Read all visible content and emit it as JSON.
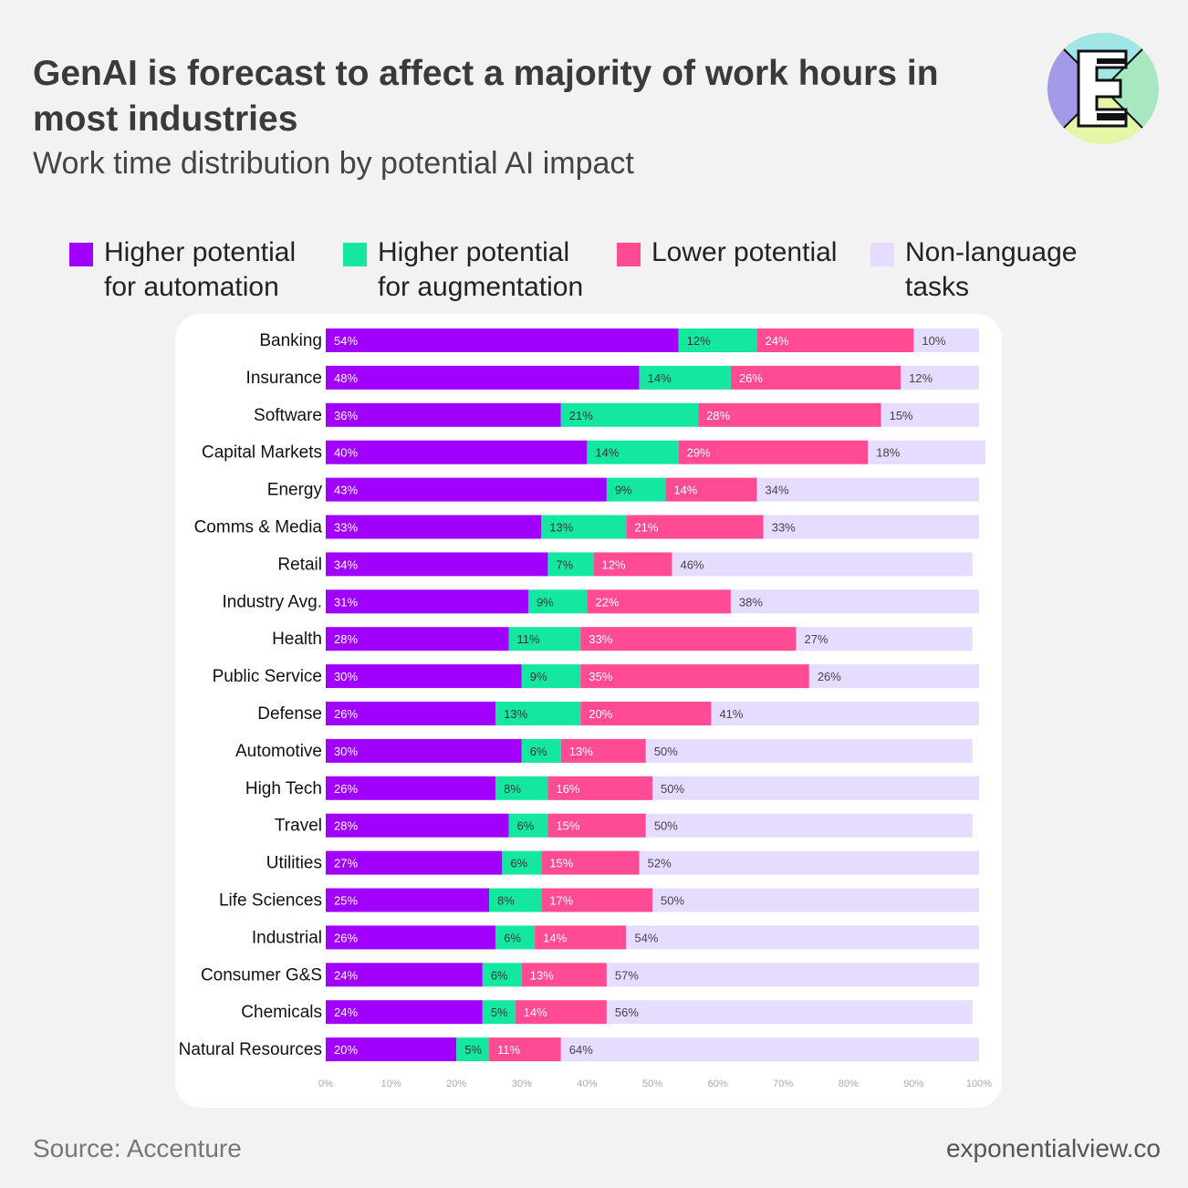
{
  "header": {
    "title": "GenAI is forecast to affect a majority of work hours in most industries",
    "subtitle": "Work time distribution by potential AI impact"
  },
  "footer": {
    "source": "Source: Accenture",
    "site": "exponentialview.co"
  },
  "logo": {
    "icon": "exponential-view-e-logo-icon"
  },
  "chart_data": {
    "type": "bar",
    "orientation": "horizontal",
    "stacked": true,
    "categories": [
      "Banking",
      "Insurance",
      "Software",
      "Capital Markets",
      "Energy",
      "Comms & Media",
      "Retail",
      "Industry Avg.",
      "Health",
      "Public Service",
      "Defense",
      "Automotive",
      "High Tech",
      "Travel",
      "Utilities",
      "Life Sciences",
      "Industrial",
      "Consumer G&S",
      "Chemicals",
      "Natural Resources"
    ],
    "series": [
      {
        "name": "Higher potential\nfor automation",
        "color": "#a100ff",
        "label_color": "#ffffff",
        "values": [
          54,
          48,
          36,
          40,
          43,
          33,
          34,
          31,
          28,
          30,
          26,
          30,
          26,
          28,
          27,
          25,
          26,
          24,
          24,
          20
        ]
      },
      {
        "name": "Higher potential\nfor augmentation",
        "color": "#14e8a0",
        "label_color": "#333333",
        "values": [
          12,
          14,
          21,
          14,
          9,
          13,
          7,
          9,
          11,
          9,
          13,
          6,
          8,
          6,
          6,
          8,
          6,
          6,
          5,
          5
        ]
      },
      {
        "name": "Lower potential",
        "color": "#ff4b94",
        "label_color": "#ffffff",
        "values": [
          24,
          26,
          28,
          29,
          14,
          21,
          12,
          22,
          33,
          35,
          20,
          13,
          16,
          15,
          15,
          17,
          14,
          13,
          14,
          11
        ]
      },
      {
        "name": "Non-language\ntasks",
        "color": "#e6dcff",
        "label_color": "#444444",
        "values": [
          10,
          12,
          15,
          18,
          34,
          33,
          46,
          38,
          27,
          26,
          41,
          50,
          50,
          50,
          52,
          50,
          54,
          57,
          56,
          64
        ]
      }
    ],
    "value_suffix": "%",
    "xlim": [
      0,
      100
    ],
    "xticks": [
      "0%",
      "10%",
      "20%",
      "30%",
      "40%",
      "50%",
      "60%",
      "70%",
      "80%",
      "90%",
      "100%"
    ],
    "legend_position": "top",
    "grid": false
  }
}
